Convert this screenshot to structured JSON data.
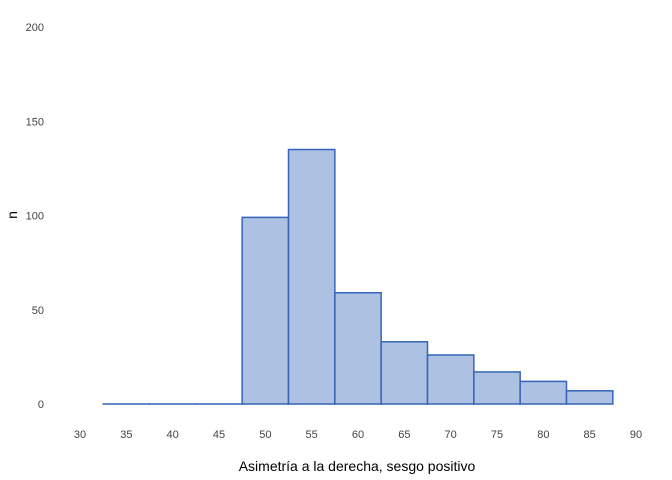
{
  "chart_data": {
    "type": "bar",
    "title": "",
    "xlabel": "Asimetría a la derecha, sesgo positivo",
    "ylabel": "n",
    "xlim": [
      30,
      90
    ],
    "ylim": [
      0,
      200
    ],
    "x_ticks": [
      30,
      35,
      40,
      45,
      50,
      55,
      60,
      65,
      70,
      75,
      80,
      85,
      90
    ],
    "y_ticks": [
      0,
      50,
      100,
      150,
      200
    ],
    "bin_width": 5,
    "bins": [
      {
        "start": 32.5,
        "end": 37.5,
        "value": 0
      },
      {
        "start": 37.5,
        "end": 42.5,
        "value": 0
      },
      {
        "start": 42.5,
        "end": 47.5,
        "value": 0
      },
      {
        "start": 47.5,
        "end": 52.5,
        "value": 99
      },
      {
        "start": 52.5,
        "end": 57.5,
        "value": 135
      },
      {
        "start": 57.5,
        "end": 62.5,
        "value": 59
      },
      {
        "start": 62.5,
        "end": 67.5,
        "value": 33
      },
      {
        "start": 67.5,
        "end": 72.5,
        "value": 26
      },
      {
        "start": 72.5,
        "end": 77.5,
        "value": 17
      },
      {
        "start": 77.5,
        "end": 82.5,
        "value": 12
      },
      {
        "start": 82.5,
        "end": 87.5,
        "value": 7
      }
    ],
    "grid": false,
    "colors": {
      "fill": "#adc1e2",
      "stroke": "#3565b8"
    }
  }
}
